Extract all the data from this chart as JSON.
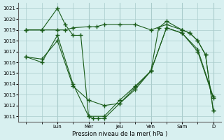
{
  "title": "",
  "xlabel": "Pression niveau de la mer( hPa )",
  "ylabel": "",
  "bg_color": "#d8f0f0",
  "grid_color": "#aacccc",
  "line_color": "#1a5c1a",
  "ylim": [
    1010.5,
    1021.5
  ],
  "yticks": [
    1011,
    1012,
    1013,
    1014,
    1015,
    1016,
    1017,
    1018,
    1019,
    1020,
    1021
  ],
  "day_labels": [
    "Lun",
    "Mer",
    "Jeu",
    "Ven",
    "Sam",
    "D"
  ],
  "day_positions": [
    2,
    4,
    6,
    8,
    10,
    12
  ],
  "xlim": [
    -0.5,
    12.5
  ],
  "series": [
    {
      "x": [
        0,
        1,
        2,
        2.5,
        3,
        3.5,
        4,
        4.3,
        4.6,
        5,
        6,
        7,
        8,
        8.5,
        9,
        10,
        10.5,
        11,
        11.5,
        12
      ],
      "y": [
        1019.0,
        1019.0,
        1021.0,
        1019.5,
        1018.5,
        1018.5,
        1011.0,
        1010.8,
        1010.8,
        1010.8,
        1012.2,
        1013.5,
        1015.2,
        1019.2,
        1019.8,
        1019.0,
        1018.7,
        1018.0,
        1016.7,
        1011.5
      ]
    },
    {
      "x": [
        0,
        1,
        2,
        2.5,
        3,
        4,
        4.5,
        5,
        6,
        7,
        8,
        9,
        10,
        10.5,
        11,
        11.5,
        12
      ],
      "y": [
        1019.0,
        1019.0,
        1019.0,
        1019.0,
        1019.2,
        1019.3,
        1019.3,
        1019.5,
        1019.5,
        1019.5,
        1019.0,
        1019.5,
        1019.0,
        1018.7,
        1018.0,
        1016.7,
        1011.5
      ]
    },
    {
      "x": [
        0,
        1,
        2,
        3,
        4,
        5,
        6,
        7,
        8,
        9,
        10,
        11,
        12
      ],
      "y": [
        1016.5,
        1016.3,
        1018.0,
        1013.8,
        1012.5,
        1012.0,
        1012.2,
        1013.7,
        1015.2,
        1019.2,
        1018.7,
        1017.2,
        1012.8
      ]
    },
    {
      "x": [
        0,
        1,
        2,
        3,
        4,
        5,
        6,
        7,
        8,
        9,
        10,
        11,
        12
      ],
      "y": [
        1016.5,
        1016.0,
        1018.5,
        1014.0,
        1011.0,
        1011.0,
        1012.5,
        1013.8,
        1015.2,
        1019.2,
        1018.7,
        1017.0,
        1012.7
      ]
    }
  ]
}
